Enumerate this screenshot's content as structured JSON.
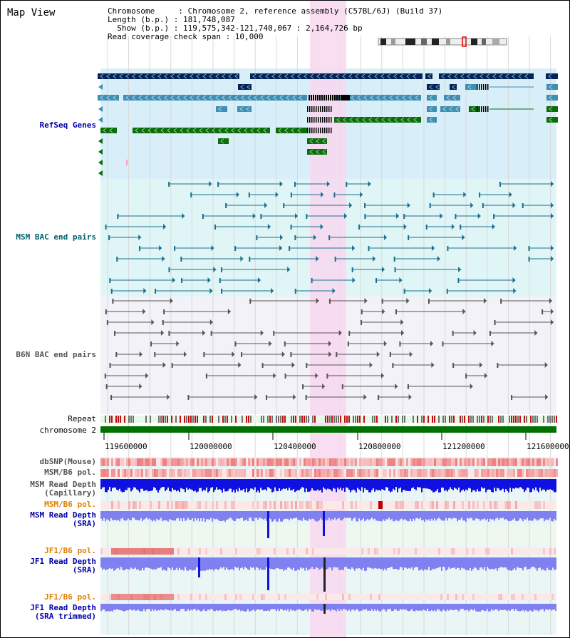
{
  "window": {
    "title": "Map View"
  },
  "header": {
    "lines": [
      "Chromosome     : Chromosome 2, reference assembly (C57BL/6J) (Build 37)",
      "Length (b.p.) : 181,748,087",
      "  Show (b.p.) : 119,575,342-121,740,067 : 2,164,726 bp",
      "Read coverage check span : 10,000"
    ]
  },
  "tracks": {
    "refseq": "RefSeq Genes",
    "msm_bac": "MSM BAC end pairs",
    "b6n_bac": "B6N BAC end pairs",
    "repeat": "Repeat",
    "chromosome": "chromosome 2",
    "dbsnp": "dbSNP(Mouse)",
    "msm_b6_pol": "MSM/B6 pol.",
    "msm_read_depth_cap_1": "MSM Read Depth",
    "msm_read_depth_cap_2": "(Capillary)",
    "msm_b6_pol_2": "MSM/B6 pol.",
    "msm_read_depth_sra_1": "MSM Read Depth",
    "msm_read_depth_sra_2": "(SRA)",
    "jf1_b6_pol": "JF1/B6 pol.",
    "jf1_read_depth_sra_1": "JF1 Read Depth",
    "jf1_read_depth_sra_2": "(SRA)",
    "jf1_b6_pol_2": "JF1/B6 pol.",
    "jf1_read_depth_trim_1": "JF1 Read Depth",
    "jf1_read_depth_trim_2": "(SRA trimmed)"
  },
  "axis": {
    "ticks": [
      "119600000",
      "120000000",
      "120400000",
      "120800000",
      "121200000",
      "121600000"
    ]
  },
  "colors": {
    "refseq_dark": "#00245a",
    "refseq_mid": "#3f8fb4",
    "refseq_green": "#0a6e0a",
    "msm_pairs": "#1a6f8f",
    "b6n_pairs": "#555555",
    "highlight": "#f8d8f0",
    "chromosome": "#007000",
    "snp": "#f08080",
    "depth_dark": "#1010e0",
    "depth_light": "#8080f0",
    "label_blue": "#0000aa",
    "label_teal": "#006070",
    "label_orange": "#e08000",
    "label_gray": "#555555"
  }
}
